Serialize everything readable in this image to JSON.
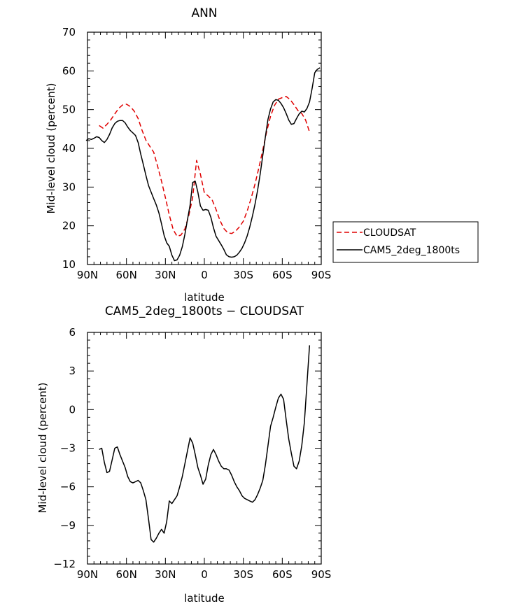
{
  "chart_data": [
    {
      "type": "line",
      "title": "ANN",
      "xlabel": "latitude",
      "ylabel": "Mid-level cloud (percent)",
      "xlim": [
        -90,
        90
      ],
      "ylim": [
        10,
        70
      ],
      "xticks": [
        {
          "value": -90,
          "label": "90N"
        },
        {
          "value": -60,
          "label": "60N"
        },
        {
          "value": -30,
          "label": "30N"
        },
        {
          "value": 0,
          "label": "0"
        },
        {
          "value": 30,
          "label": "30S"
        },
        {
          "value": 60,
          "label": "60S"
        },
        {
          "value": 90,
          "label": "90S"
        }
      ],
      "yticks": [
        10,
        20,
        30,
        40,
        50,
        60,
        70
      ],
      "legend": {
        "position": "right",
        "entries": [
          "CLOUDSAT",
          "CAM5_2deg_1800ts"
        ]
      },
      "series": [
        {
          "name": "CLOUDSAT",
          "color": "#e00000",
          "dash": "dashed",
          "x": [
            -81,
            -78,
            -75,
            -72,
            -69,
            -66,
            -63,
            -60,
            -57,
            -54,
            -51,
            -48,
            -45,
            -42,
            -39,
            -36,
            -33,
            -30,
            -27,
            -24,
            -21,
            -18,
            -15,
            -12,
            -9,
            -6,
            -3,
            0,
            3,
            6,
            9,
            12,
            15,
            18,
            21,
            24,
            27,
            30,
            33,
            36,
            39,
            42,
            45,
            48,
            51,
            54,
            57,
            60,
            63,
            66,
            69,
            72,
            75,
            78,
            81
          ],
          "y": [
            45.9,
            45.2,
            46.2,
            47.4,
            48.9,
            50.3,
            51.2,
            51.4,
            50.8,
            49.6,
            47.7,
            44.7,
            42.1,
            40.5,
            39.0,
            35.4,
            31.5,
            27.3,
            22.8,
            19.0,
            17.3,
            17.6,
            19.2,
            22.6,
            27.3,
            36.9,
            33.3,
            28.5,
            27.7,
            26.7,
            24.2,
            21.4,
            19.3,
            18.2,
            18.0,
            18.6,
            19.7,
            21.2,
            23.8,
            27.1,
            30.8,
            35.0,
            39.6,
            44.4,
            48.3,
            51.1,
            52.7,
            53.1,
            53.4,
            52.6,
            51.3,
            49.8,
            49.0,
            47.3,
            44.2
          ]
        },
        {
          "name": "CAM5_2deg_1800ts",
          "color": "#000000",
          "dash": "solid",
          "x": [
            -91,
            -89,
            -87,
            -85,
            -83,
            -81,
            -79,
            -77,
            -75,
            -73,
            -71,
            -69,
            -67,
            -65,
            -63,
            -61,
            -59,
            -57,
            -55,
            -53,
            -51,
            -49,
            -47,
            -45,
            -43,
            -41,
            -39,
            -37,
            -35,
            -33,
            -31,
            -29,
            -27,
            -25,
            -23,
            -21,
            -19,
            -17,
            -15,
            -13,
            -11,
            -9,
            -7,
            -5,
            -3,
            -1,
            1,
            3,
            5,
            7,
            9,
            11,
            13,
            15,
            17,
            19,
            21,
            23,
            25,
            27,
            29,
            31,
            33,
            35,
            37,
            39,
            41,
            43,
            45,
            47,
            49,
            51,
            53,
            55,
            57,
            59,
            61,
            63,
            65,
            67,
            69,
            71,
            73,
            75,
            77,
            79,
            81,
            83,
            85,
            87,
            89
          ],
          "y": [
            42.0,
            42.5,
            42.3,
            42.6,
            43.0,
            42.8,
            42.0,
            41.5,
            42.3,
            43.6,
            45.3,
            46.4,
            47.0,
            47.2,
            47.2,
            46.6,
            45.5,
            44.6,
            44.0,
            43.3,
            41.5,
            38.5,
            35.8,
            33.0,
            30.4,
            28.7,
            27.0,
            25.4,
            23.3,
            20.5,
            17.5,
            15.6,
            14.7,
            12.4,
            11.0,
            11.2,
            12.4,
            14.6,
            17.8,
            21.6,
            25.3,
            31.2,
            31.5,
            28.7,
            25.1,
            24.0,
            24.2,
            24.0,
            22.2,
            19.5,
            17.3,
            16.2,
            15.1,
            13.9,
            12.5,
            12.0,
            11.9,
            12.0,
            12.4,
            13.2,
            14.2,
            15.6,
            17.4,
            19.7,
            22.5,
            25.6,
            29.2,
            33.4,
            38.2,
            43.0,
            47.5,
            50.2,
            52.0,
            52.6,
            52.4,
            51.6,
            50.5,
            49.0,
            47.3,
            46.2,
            46.4,
            47.7,
            48.9,
            49.6,
            49.4,
            50.3,
            52.0,
            55.5,
            59.5,
            60.4,
            60.8
          ]
        }
      ]
    },
    {
      "type": "line",
      "title": "CAM5_2deg_1800ts − CLOUDSAT",
      "xlabel": "latitude",
      "ylabel": "Mid-level cloud (percent)",
      "xlim": [
        -90,
        90
      ],
      "ylim": [
        -12,
        6
      ],
      "xticks": [
        {
          "value": -90,
          "label": "90N"
        },
        {
          "value": -60,
          "label": "60N"
        },
        {
          "value": -30,
          "label": "30N"
        },
        {
          "value": 0,
          "label": "0"
        },
        {
          "value": 30,
          "label": "30S"
        },
        {
          "value": 60,
          "label": "60S"
        },
        {
          "value": 90,
          "label": "90S"
        }
      ],
      "yticks": [
        -12,
        -9,
        -6,
        -3,
        0,
        3,
        6
      ],
      "series": [
        {
          "color": "#000000",
          "dash": "solid",
          "x": [
            -81,
            -79,
            -77,
            -75,
            -73,
            -71,
            -69,
            -67,
            -65,
            -63,
            -61,
            -59,
            -57,
            -55,
            -53,
            -51,
            -49,
            -47,
            -45,
            -43,
            -41,
            -39,
            -37,
            -35,
            -33,
            -31,
            -29,
            -27,
            -25,
            -23,
            -21,
            -19,
            -17,
            -15,
            -13,
            -11,
            -9,
            -7,
            -5,
            -3,
            -1,
            1,
            3,
            5,
            7,
            9,
            11,
            13,
            15,
            17,
            19,
            21,
            23,
            25,
            27,
            29,
            31,
            33,
            35,
            37,
            39,
            41,
            43,
            45,
            47,
            49,
            51,
            53,
            55,
            57,
            59,
            61,
            63,
            65,
            67,
            69,
            71,
            73,
            75,
            77,
            79,
            81
          ],
          "y": [
            -3.1,
            -3.0,
            -4.1,
            -4.9,
            -4.8,
            -3.9,
            -3.0,
            -2.9,
            -3.5,
            -4.0,
            -4.5,
            -5.2,
            -5.6,
            -5.7,
            -5.6,
            -5.5,
            -5.7,
            -6.3,
            -7.0,
            -8.5,
            -10.1,
            -10.3,
            -10.0,
            -9.6,
            -9.3,
            -9.6,
            -8.7,
            -7.1,
            -7.3,
            -7.0,
            -6.7,
            -6.0,
            -5.2,
            -4.2,
            -3.2,
            -2.2,
            -2.6,
            -3.5,
            -4.5,
            -5.1,
            -5.8,
            -5.4,
            -4.3,
            -3.5,
            -3.1,
            -3.5,
            -4.0,
            -4.4,
            -4.6,
            -4.6,
            -4.7,
            -5.1,
            -5.6,
            -6.0,
            -6.3,
            -6.7,
            -6.9,
            -7.0,
            -7.1,
            -7.2,
            -7.0,
            -6.6,
            -6.1,
            -5.5,
            -4.3,
            -2.8,
            -1.3,
            -0.6,
            0.2,
            0.9,
            1.2,
            0.8,
            -0.8,
            -2.3,
            -3.4,
            -4.4,
            -4.6,
            -4.0,
            -2.8,
            -1.0,
            2.0,
            5.0
          ]
        }
      ]
    }
  ]
}
